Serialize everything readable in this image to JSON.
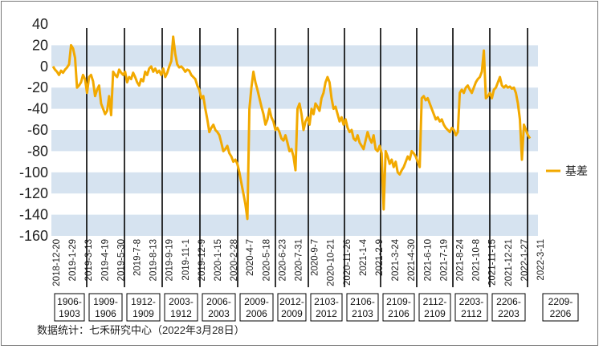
{
  "chart_data": {
    "type": "line",
    "title": "",
    "xlabel": "",
    "ylabel": "",
    "ylim": [
      -160,
      40
    ],
    "yticks": [
      40,
      20,
      0,
      -20,
      -40,
      -60,
      -80,
      -100,
      -120,
      -140,
      -160
    ],
    "grid": "alternating horizontal bands",
    "legend_position": "right",
    "x_tick_labels": [
      "2018-12-20",
      "2019-1-29",
      "2019-3-13",
      "2019-4-19",
      "2019-5-30",
      "2019-7-8",
      "2019-8-13",
      "2019-9-19",
      "2019-11-1",
      "2019-12-9",
      "2020-1-15",
      "2020-2-28",
      "2020-4-7",
      "2020-5-18",
      "2020-6-23",
      "2020-7-31",
      "2020-9-7",
      "2020-10-21",
      "2020-11-26",
      "2021-1-4",
      "2021-2-9",
      "2021-3-24",
      "2021-4-30",
      "2021-6-10",
      "2021-7-19",
      "2021-8-24",
      "2021-10-8",
      "2021-11-15",
      "2021-12-21",
      "2022-1-27",
      "2022-3-11"
    ],
    "contracts": [
      {
        "line1": "1906-",
        "line2": "1903"
      },
      {
        "line1": "1909-",
        "line2": "1906"
      },
      {
        "line1": "1912-",
        "line2": "1909"
      },
      {
        "line1": "2003-",
        "line2": "1912"
      },
      {
        "line1": "2006-",
        "line2": "2003"
      },
      {
        "line1": "2009-",
        "line2": "2006"
      },
      {
        "line1": "2012-",
        "line2": "2009"
      },
      {
        "line1": "2103-",
        "line2": "2012"
      },
      {
        "line1": "2106-",
        "line2": "2103"
      },
      {
        "line1": "2109-",
        "line2": "2106"
      },
      {
        "line1": "2112-",
        "line2": "2109"
      },
      {
        "line1": "2203-",
        "line2": "2112"
      },
      {
        "line1": "2206-",
        "line2": "2203"
      },
      {
        "line1": "2209-",
        "line2": "2206"
      }
    ],
    "series": [
      {
        "name": "基差",
        "color": "#f2a900",
        "values": [
          0,
          -3,
          -5,
          -8,
          -4,
          -6,
          -3,
          -1,
          2,
          20,
          17,
          8,
          -20,
          -18,
          -15,
          -8,
          -12,
          -25,
          -10,
          -8,
          -14,
          -28,
          -22,
          -18,
          -35,
          -40,
          -45,
          -42,
          -28,
          -46,
          -5,
          -8,
          -10,
          -3,
          -6,
          -8,
          -5,
          -15,
          -10,
          -12,
          -6,
          -10,
          -15,
          -18,
          -12,
          -14,
          -5,
          -8,
          -2,
          0,
          -5,
          -2,
          -6,
          -4,
          -8,
          -2,
          -10,
          -6,
          0,
          5,
          28,
          12,
          2,
          -1,
          0,
          -2,
          -5,
          -3,
          -4,
          -8,
          -10,
          -12,
          -18,
          -22,
          -30,
          -28,
          -40,
          -50,
          -62,
          -58,
          -55,
          -60,
          -62,
          -65,
          -72,
          -80,
          -78,
          -75,
          -82,
          -85,
          -90,
          -88,
          -92,
          -100,
          -110,
          -120,
          -130,
          -144,
          -40,
          -20,
          -5,
          -15,
          -22,
          -30,
          -38,
          -45,
          -55,
          -50,
          -40,
          -48,
          -52,
          -60,
          -58,
          -62,
          -68,
          -70,
          -65,
          -72,
          -80,
          -78,
          -85,
          -98,
          -40,
          -35,
          -45,
          -60,
          -52,
          -48,
          -55,
          -40,
          -45,
          -35,
          -38,
          -42,
          -30,
          -25,
          -15,
          -10,
          -15,
          -30,
          -40,
          -38,
          -45,
          -52,
          -48,
          -55,
          -50,
          -58,
          -62,
          -60,
          -68,
          -70,
          -65,
          -72,
          -75,
          -78,
          -70,
          -62,
          -68,
          -72,
          -65,
          -78,
          -80,
          -75,
          -82,
          -135,
          -80,
          -85,
          -92,
          -88,
          -95,
          -90,
          -100,
          -102,
          -98,
          -95,
          -90,
          -85,
          -88,
          -80,
          -82,
          -85,
          -90,
          -95,
          -30,
          -28,
          -32,
          -30,
          -35,
          -40,
          -45,
          -50,
          -48,
          -52,
          -50,
          -55,
          -58,
          -60,
          -62,
          -58,
          -60,
          -65,
          -62,
          -25,
          -22,
          -25,
          -20,
          -18,
          -22,
          -25,
          -20,
          -15,
          -12,
          -10,
          -5,
          15,
          -30,
          -28,
          -25,
          -30,
          -22,
          -20,
          -15,
          -10,
          -18,
          -20,
          -18,
          -20,
          -19,
          -21,
          -20,
          -25,
          -35,
          -50,
          -88,
          -55,
          -60,
          -65,
          -68
        ]
      }
    ]
  },
  "legend": {
    "label": "基差"
  },
  "source_note": "数据统计：七禾研究中心（2022年3月28日）"
}
